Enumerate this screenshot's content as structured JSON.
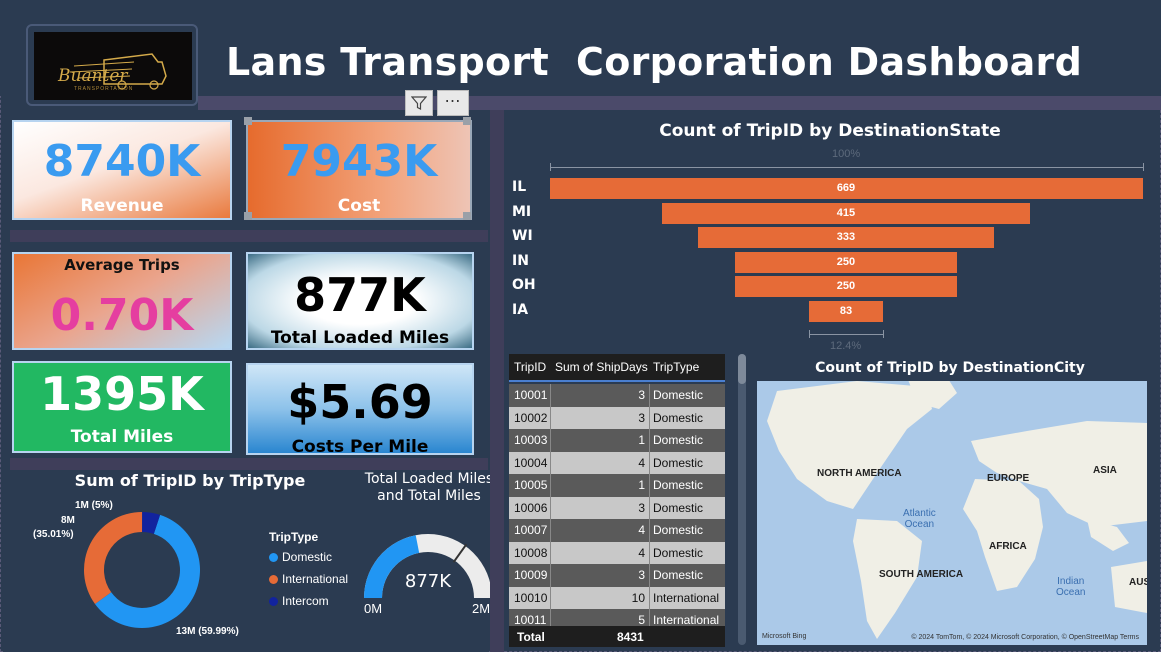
{
  "header": {
    "title": "Lans Transport  Corporation Dashboard",
    "logo_text": "Buanter",
    "logo_subtext": "TRANSPORTATION"
  },
  "visual_controls": {
    "filter_icon": "filter-icon",
    "more_label": "⋯"
  },
  "kpis": {
    "revenue": {
      "value": "8740K",
      "label": "Revenue"
    },
    "cost": {
      "value": "7943K",
      "label": "Cost"
    },
    "avg_trips": {
      "value": "0.70K",
      "label": "Average Trips"
    },
    "loaded_miles": {
      "value": "877K",
      "label": "Total Loaded Miles"
    },
    "total_miles": {
      "value": "1395K",
      "label": "Total Miles"
    },
    "cost_per_mile": {
      "value": "$5.69",
      "label": "Costs Per Mile"
    }
  },
  "colors": {
    "domestic": "#2196f3",
    "international": "#e66b37",
    "intercom": "#12239e",
    "funnel": "#e66b37"
  },
  "donut": {
    "title": "Sum of TripID by TripType",
    "legend_title": "TripType",
    "labels": {
      "intercom": "1M (5%)",
      "international_line1": "8M",
      "international_line2": "(35.01%)",
      "domestic": "13M (59.99%)"
    }
  },
  "gauge": {
    "title_line1": "Total Loaded Miles",
    "title_line2": "and Total Miles",
    "value_label": "877K",
    "min_label": "0M",
    "max_label": "2M"
  },
  "table": {
    "headers": [
      "TripID",
      "Sum of ShipDays",
      "TripType"
    ],
    "rows": [
      [
        "10001",
        "3",
        "Domestic"
      ],
      [
        "10002",
        "3",
        "Domestic"
      ],
      [
        "10003",
        "1",
        "Domestic"
      ],
      [
        "10004",
        "4",
        "Domestic"
      ],
      [
        "10005",
        "1",
        "Domestic"
      ],
      [
        "10006",
        "3",
        "Domestic"
      ],
      [
        "10007",
        "4",
        "Domestic"
      ],
      [
        "10008",
        "4",
        "Domestic"
      ],
      [
        "10009",
        "3",
        "Domestic"
      ],
      [
        "10010",
        "10",
        "International"
      ],
      [
        "10011",
        "5",
        "International"
      ]
    ],
    "total_label": "Total",
    "total_value": "8431"
  },
  "map": {
    "title": "Count of TripID by DestinationCity",
    "labels": {
      "north_america": "NORTH AMERICA",
      "europe": "EUROPE",
      "asia": "ASIA",
      "africa": "AFRICA",
      "south_america": "SOUTH AMERICA",
      "aus": "AUS",
      "atlantic_1": "Atlantic",
      "atlantic_2": "Ocean",
      "indian_1": "Indian",
      "indian_2": "Ocean"
    },
    "bing": "Microsoft Bing",
    "credit": "© 2024 TomTom, © 2024 Microsoft Corporation, © OpenStreetMap  Terms"
  },
  "chart_data": [
    {
      "type": "bar",
      "subtype": "funnel",
      "title": "Count of TripID by DestinationState",
      "categories": [
        "IL",
        "MI",
        "WI",
        "IN",
        "OH",
        "IA"
      ],
      "values": [
        669,
        415,
        333,
        250,
        250,
        83
      ],
      "top_pct_label": "100%",
      "bottom_pct_label": "12.4%"
    },
    {
      "type": "pie",
      "subtype": "donut",
      "title": "Sum of TripID by TripType",
      "categories": [
        "Domestic",
        "International",
        "Intercom"
      ],
      "values": [
        59.99,
        35.01,
        5
      ]
    },
    {
      "type": "gauge",
      "title": "Total Loaded Miles and Total Miles",
      "value": 877,
      "target": 1395,
      "min": 0,
      "max": 2000,
      "unit": "K"
    }
  ]
}
